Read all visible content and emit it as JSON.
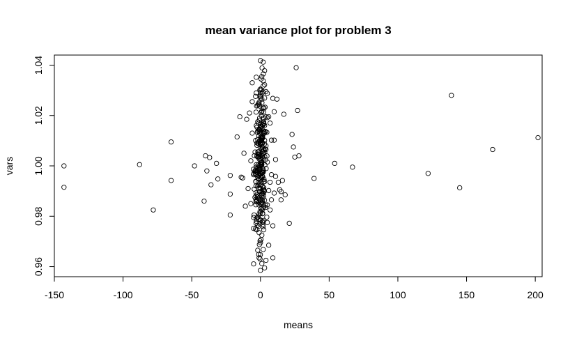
{
  "chart_data": {
    "type": "scatter",
    "title": "mean variance plot for problem 3",
    "xlabel": "means",
    "ylabel": "vars",
    "xlim": [
      -150,
      205
    ],
    "ylim": [
      0.956,
      1.044
    ],
    "xticks": [
      -150,
      -100,
      -50,
      0,
      50,
      100,
      150,
      200
    ],
    "xtick_labels": [
      "-150",
      "-100",
      "-50",
      "0",
      "50",
      "100",
      "150",
      "200"
    ],
    "yticks": [
      0.96,
      0.98,
      1.0,
      1.02,
      1.04
    ],
    "ytick_labels": [
      "0.96",
      "0.98",
      "1.00",
      "1.02",
      "1.04"
    ],
    "grid": false,
    "legend": "none",
    "series": [
      {
        "marker": "open-circle",
        "color": "#000000",
        "points": [
          [
            -143,
            1.0
          ],
          [
            -143,
            0.9915
          ],
          [
            -88,
            1.0005
          ],
          [
            -78,
            0.9825
          ],
          [
            -65,
            1.0095
          ],
          [
            -65,
            0.9942
          ],
          [
            -48,
            1.0
          ],
          [
            -41,
            0.986
          ],
          [
            -40,
            1.004
          ],
          [
            -39,
            0.998
          ],
          [
            -37,
            1.0033
          ],
          [
            -36,
            0.9925
          ],
          [
            -32,
            1.001
          ],
          [
            -31,
            0.9948
          ],
          [
            -22,
            0.9962
          ],
          [
            -22,
            0.9888
          ],
          [
            -22,
            0.9805
          ],
          [
            -17,
            1.0115
          ],
          [
            -15,
            1.0195
          ],
          [
            -14,
            0.9955
          ],
          [
            -13,
            0.9952
          ],
          [
            -12,
            1.005
          ],
          [
            -11,
            0.984
          ],
          [
            -10,
            1.0185
          ],
          [
            -9,
            0.991
          ],
          [
            -8,
            1.021
          ],
          [
            -7,
            1.002
          ],
          [
            -7,
            0.985
          ],
          [
            -6,
            1.033
          ],
          [
            -6,
            1.0255
          ],
          [
            -6,
            1.013
          ],
          [
            -5,
            0.9965
          ],
          [
            -5,
            0.9795
          ],
          [
            -5,
            0.9752
          ],
          [
            -4,
            0.998
          ],
          [
            -4,
            0.9875
          ],
          [
            -3,
            1.016
          ],
          [
            -3,
            1.0005
          ],
          [
            -3,
            0.9968
          ],
          [
            -3,
            0.979
          ],
          [
            -2,
            1.024
          ],
          [
            -2,
            1.0035
          ],
          [
            -2,
            0.992
          ],
          [
            -2,
            0.9665
          ],
          [
            -1,
            1.0252
          ],
          [
            -1,
            1.0145
          ],
          [
            -1,
            0.9845
          ],
          [
            -1,
            0.9735
          ],
          [
            -1,
            0.9635
          ],
          [
            0,
            1.0418
          ],
          [
            0,
            1.0305
          ],
          [
            0,
            1.0275
          ],
          [
            0,
            1.0085
          ],
          [
            0,
            0.9695
          ],
          [
            0,
            0.9585
          ],
          [
            1,
            1.0355
          ],
          [
            1,
            1.0265
          ],
          [
            1,
            1.0218
          ],
          [
            1,
            1.0005
          ],
          [
            1,
            0.9725
          ],
          [
            1,
            0.9612
          ],
          [
            2,
            1.0412
          ],
          [
            2,
            1.0338
          ],
          [
            2,
            1.0135
          ],
          [
            2,
            0.9975
          ],
          [
            2,
            0.9778
          ],
          [
            2,
            0.9668
          ],
          [
            3,
            1.0378
          ],
          [
            3,
            1.0322
          ],
          [
            3,
            0.9938
          ],
          [
            3,
            0.9595
          ],
          [
            4,
            1.0295
          ],
          [
            4,
            1.0195
          ],
          [
            4,
            1.0065
          ],
          [
            4,
            0.9625
          ],
          [
            5,
            1.0288
          ],
          [
            5,
            1.0015
          ],
          [
            5,
            0.9845
          ],
          [
            5,
            0.9775
          ],
          [
            6,
            1.0195
          ],
          [
            6,
            0.9902
          ],
          [
            6,
            0.9685
          ],
          [
            7,
            1.017
          ],
          [
            7,
            0.9935
          ],
          [
            7,
            0.9825
          ],
          [
            8,
            1.0102
          ],
          [
            8,
            0.9965
          ],
          [
            8,
            0.9865
          ],
          [
            9,
            1.0268
          ],
          [
            9,
            0.9762
          ],
          [
            9,
            0.9635
          ],
          [
            10,
            1.0215
          ],
          [
            10,
            1.0102
          ],
          [
            10,
            0.9892
          ],
          [
            11,
            1.0025
          ],
          [
            11,
            0.9958
          ],
          [
            12,
            1.0265
          ],
          [
            13,
            0.9935
          ],
          [
            14,
            0.9905
          ],
          [
            15,
            0.9898
          ],
          [
            15,
            0.9865
          ],
          [
            16,
            0.9942
          ],
          [
            17,
            1.0205
          ],
          [
            18,
            0.9885
          ],
          [
            21,
            0.9772
          ],
          [
            23,
            1.0125
          ],
          [
            24,
            1.0075
          ],
          [
            25,
            1.0035
          ],
          [
            26,
            1.039
          ],
          [
            27,
            1.022
          ],
          [
            28,
            1.004
          ],
          [
            39,
            0.995
          ],
          [
            54,
            1.001
          ],
          [
            67,
            0.9995
          ],
          [
            122,
            0.997
          ],
          [
            139,
            1.028
          ],
          [
            145,
            0.9913
          ],
          [
            169,
            1.0065
          ],
          [
            202,
            1.0112
          ]
        ]
      }
    ]
  }
}
